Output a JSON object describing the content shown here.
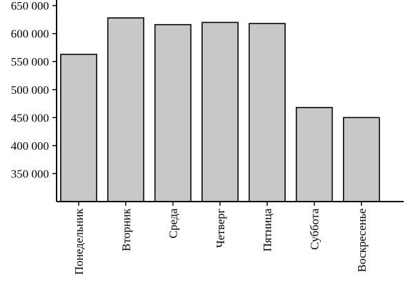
{
  "chart_data": {
    "type": "bar",
    "categories": [
      "Понедельник",
      "Вторник",
      "Среда",
      "Четверг",
      "Пятница",
      "Суббота",
      "Воскресенье"
    ],
    "values": [
      563000,
      628000,
      616000,
      620000,
      618000,
      468000,
      450000
    ],
    "yticks": [
      350000,
      400000,
      450000,
      500000,
      550000,
      600000,
      650000
    ],
    "ytick_labels": [
      "350 000",
      "400 000",
      "450 000",
      "500 000",
      "550 000",
      "600 000",
      "650 000"
    ],
    "ylim": [
      300000,
      660000
    ],
    "title": "",
    "xlabel": "",
    "ylabel": "",
    "grid": false,
    "bar_color": "#c8c8c8",
    "edge_color": "#000000"
  }
}
